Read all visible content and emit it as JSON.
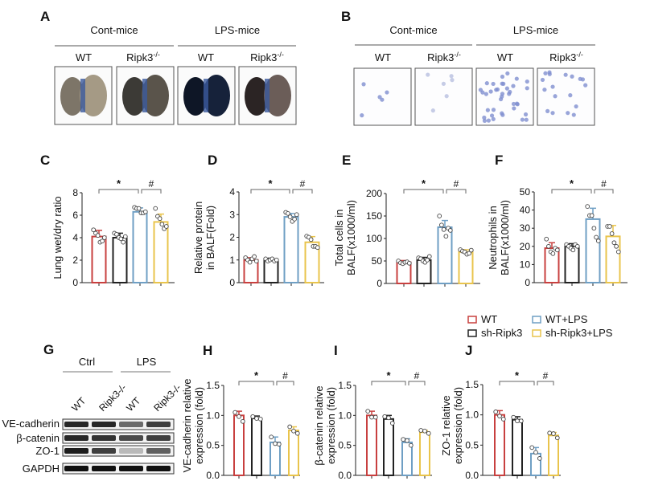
{
  "panels": {
    "A": "A",
    "B": "B",
    "C": "C",
    "D": "D",
    "E": "E",
    "F": "F",
    "G": "G",
    "H": "H",
    "I": "I",
    "J": "J"
  },
  "panel_a": {
    "groups": [
      "Cont-mice",
      "LPS-mice"
    ],
    "lanes": [
      {
        "label": "WT",
        "sup": ""
      },
      {
        "label": "Ripk3",
        "sup": "-/-"
      },
      {
        "label": "WT",
        "sup": ""
      },
      {
        "label": "Ripk3",
        "sup": "-/-"
      }
    ]
  },
  "panel_b": {
    "groups": [
      "Cont-mice",
      "LPS-mice"
    ],
    "lanes": [
      {
        "label": "WT",
        "sup": ""
      },
      {
        "label": "Ripk3",
        "sup": "-/-"
      },
      {
        "label": "WT",
        "sup": ""
      },
      {
        "label": "Ripk3",
        "sup": "-/-"
      }
    ]
  },
  "panel_g": {
    "groups": [
      "Ctrl",
      "LPS"
    ],
    "lanes": [
      "WT",
      "Ripk3-/-",
      "WT",
      "Ripk3-/-"
    ],
    "rows": [
      "VE-cadherin",
      "β-catenin",
      "ZO-1",
      "GAPDH"
    ],
    "band_intensity": [
      [
        0.9,
        0.9,
        0.6,
        0.8
      ],
      [
        0.9,
        0.85,
        0.75,
        0.8
      ],
      [
        0.95,
        0.8,
        0.25,
        0.65
      ],
      [
        1,
        1,
        1,
        1
      ]
    ]
  },
  "legend": {
    "items": [
      {
        "label": "WT",
        "color": "#c8403f"
      },
      {
        "label": "WT+LPS",
        "color": "#6f9fc4"
      },
      {
        "label": "sh-Ripk3",
        "color": "#222222"
      },
      {
        "label": "sh-Ripk3+LPS",
        "color": "#e9c44c"
      }
    ]
  },
  "chart_data": [
    {
      "id": "C",
      "type": "bar",
      "ylabel": [
        "Lung wet/dry ratio"
      ],
      "ylim": [
        0,
        8
      ],
      "ticks": [
        "0",
        "2",
        "4",
        "6",
        "8"
      ],
      "values": [
        4.1,
        4.0,
        6.3,
        5.4
      ],
      "errors": [
        0.55,
        0.4,
        0.35,
        0.7
      ],
      "points": [
        [
          4.7,
          4.4,
          4.2,
          3.6,
          3.7,
          4.0
        ],
        [
          4.4,
          4.3,
          4.0,
          3.9,
          3.6,
          4.1
        ],
        [
          6.7,
          6.6,
          6.6,
          6.2,
          6.2,
          6.3
        ],
        [
          6.6,
          5.9,
          5.7,
          5.2,
          4.8,
          5.0
        ]
      ],
      "significance": [
        "*",
        "#"
      ]
    },
    {
      "id": "D",
      "type": "bar",
      "ylabel": [
        "Relative protein",
        "in BALF(Fold)"
      ],
      "ylim": [
        0,
        4
      ],
      "ticks": [
        "0",
        "1",
        "2",
        "3",
        "4"
      ],
      "values": [
        1.0,
        1.0,
        2.9,
        1.78
      ],
      "errors": [
        0.1,
        0.08,
        0.15,
        0.25
      ],
      "points": [
        [
          1.1,
          1.0,
          0.9,
          1.05,
          1.15,
          0.95
        ],
        [
          1.05,
          0.95,
          1.0,
          1.05,
          0.95,
          1.0
        ],
        [
          3.1,
          3.05,
          2.9,
          2.7,
          2.8,
          3.0
        ],
        [
          2.05,
          2.0,
          1.9,
          1.6,
          1.6,
          1.55
        ]
      ],
      "significance": [
        "*",
        "#"
      ]
    },
    {
      "id": "E",
      "type": "bar",
      "ylabel": [
        "Total cells in",
        "BALF(x1000/ml)"
      ],
      "ylim": [
        0,
        200
      ],
      "ticks": [
        "0",
        "50",
        "100",
        "150",
        "200"
      ],
      "values": [
        47,
        52,
        125,
        70
      ],
      "errors": [
        4,
        6,
        15,
        5
      ],
      "points": [
        [
          50,
          46,
          44,
          47,
          48,
          45
        ],
        [
          57,
          55,
          50,
          47,
          52,
          60
        ],
        [
          150,
          130,
          120,
          105,
          123,
          118
        ],
        [
          75,
          72,
          70,
          65,
          67,
          74
        ]
      ],
      "significance": [
        "*",
        "#"
      ]
    },
    {
      "id": "F",
      "type": "bar",
      "ylabel": [
        "Neutrophils in",
        "BALF(x1000/ml)"
      ],
      "ylim": [
        0,
        50
      ],
      "ticks": [
        "0",
        "10",
        "20",
        "30",
        "40",
        "50"
      ],
      "values": [
        19,
        20,
        35,
        25.5
      ],
      "errors": [
        3,
        1.5,
        6,
        6
      ],
      "points": [
        [
          24,
          20,
          17,
          16,
          19,
          18
        ],
        [
          21,
          20,
          19,
          18,
          21,
          20
        ],
        [
          42,
          37,
          37,
          30,
          25,
          23
        ],
        [
          31,
          31,
          27,
          22,
          20,
          17
        ]
      ],
      "significance": [
        "*",
        "#"
      ]
    },
    {
      "id": "H",
      "type": "bar",
      "ylabel": [
        "VE-cadherin relative",
        "expression (fold)"
      ],
      "ylim": [
        0,
        1.5
      ],
      "ticks": [
        "0.0",
        "0.5",
        "1.0",
        "1.5"
      ],
      "values": [
        1.0,
        0.95,
        0.55,
        0.75
      ],
      "errors": [
        0.07,
        0.04,
        0.09,
        0.06
      ],
      "points": [
        [
          1.05,
          0.98,
          0.9
        ],
        [
          0.98,
          0.95,
          0.94
        ],
        [
          0.64,
          0.53,
          0.52
        ],
        [
          0.81,
          0.74,
          0.7
        ]
      ],
      "significance": [
        "*",
        "#"
      ]
    },
    {
      "id": "I",
      "type": "bar",
      "ylabel": [
        "β-catenin relative",
        "expression (fold)"
      ],
      "ylim": [
        0,
        1.5
      ],
      "ticks": [
        "0.0",
        "0.5",
        "1.0",
        "1.5"
      ],
      "values": [
        1.0,
        0.94,
        0.55,
        0.72
      ],
      "errors": [
        0.07,
        0.06,
        0.06,
        0.03
      ],
      "points": [
        [
          1.07,
          0.97,
          0.97
        ],
        [
          0.98,
          0.96,
          0.87
        ],
        [
          0.6,
          0.58,
          0.5
        ],
        [
          0.75,
          0.74,
          0.7
        ]
      ],
      "significance": [
        "*",
        "#"
      ]
    },
    {
      "id": "J",
      "type": "bar",
      "ylabel": [
        "ZO-1 relative",
        "expression (fold)"
      ],
      "ylim": [
        0,
        1.5
      ],
      "ticks": [
        "0.0",
        "0.5",
        "1.0",
        "1.5"
      ],
      "values": [
        1.0,
        0.92,
        0.36,
        0.66
      ],
      "errors": [
        0.07,
        0.05,
        0.1,
        0.05
      ],
      "points": [
        [
          1.05,
          0.98,
          0.93
        ],
        [
          0.96,
          0.9,
          0.9
        ],
        [
          0.46,
          0.38,
          0.28
        ],
        [
          0.7,
          0.69,
          0.62
        ]
      ],
      "significance": [
        "*",
        "#"
      ]
    }
  ]
}
